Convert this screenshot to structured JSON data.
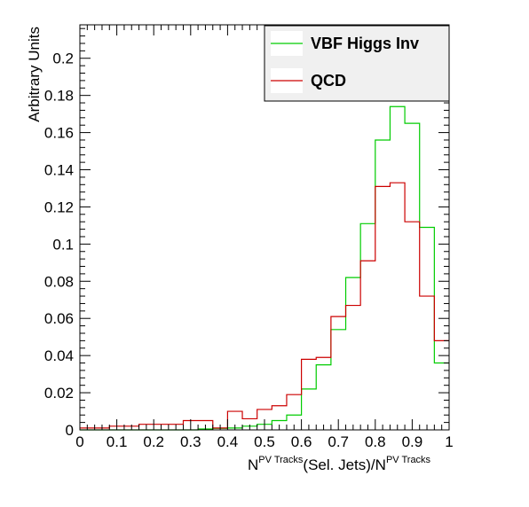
{
  "chart_data": {
    "type": "line",
    "style": "step-histogram",
    "title": "",
    "xlabel": {
      "main": "N",
      "sup1": "PV Tracks",
      "mid": "(Sel. Jets)/N",
      "sup2": "PV Tracks"
    },
    "ylabel": "Arbitrary Units",
    "xlim": [
      0,
      1
    ],
    "ylim": [
      0,
      0.218
    ],
    "x_ticks": [
      "0",
      "0.1",
      "0.2",
      "0.3",
      "0.4",
      "0.5",
      "0.6",
      "0.7",
      "0.8",
      "0.9",
      "1"
    ],
    "y_ticks": [
      "0",
      "0.02",
      "0.04",
      "0.06",
      "0.08",
      "0.1",
      "0.12",
      "0.14",
      "0.16",
      "0.18",
      "0.2"
    ],
    "bin_edges": [
      0,
      0.04,
      0.08,
      0.12,
      0.16,
      0.2,
      0.24,
      0.28,
      0.32,
      0.36,
      0.4,
      0.44,
      0.48,
      0.52,
      0.56,
      0.6,
      0.64,
      0.68,
      0.72,
      0.76,
      0.8,
      0.84,
      0.88,
      0.92,
      0.96,
      1.0
    ],
    "grid": false,
    "legend_position": "top-right",
    "series": [
      {
        "name": "VBF Higgs Inv",
        "color": "#00cc00",
        "values": [
          0.0,
          0.0,
          0.0,
          0.0,
          0.0,
          0.0,
          0.0,
          0.0,
          0.0005,
          0.0008,
          0.001,
          0.002,
          0.003,
          0.005,
          0.008,
          0.022,
          0.035,
          0.054,
          0.082,
          0.111,
          0.156,
          0.174,
          0.165,
          0.109,
          0.036
        ]
      },
      {
        "name": "QCD",
        "color": "#cc0000",
        "values": [
          0.001,
          0.001,
          0.002,
          0.002,
          0.003,
          0.003,
          0.003,
          0.005,
          0.005,
          0.001,
          0.01,
          0.006,
          0.011,
          0.013,
          0.019,
          0.038,
          0.039,
          0.061,
          0.067,
          0.091,
          0.131,
          0.133,
          0.112,
          0.072,
          0.048
        ]
      }
    ]
  }
}
